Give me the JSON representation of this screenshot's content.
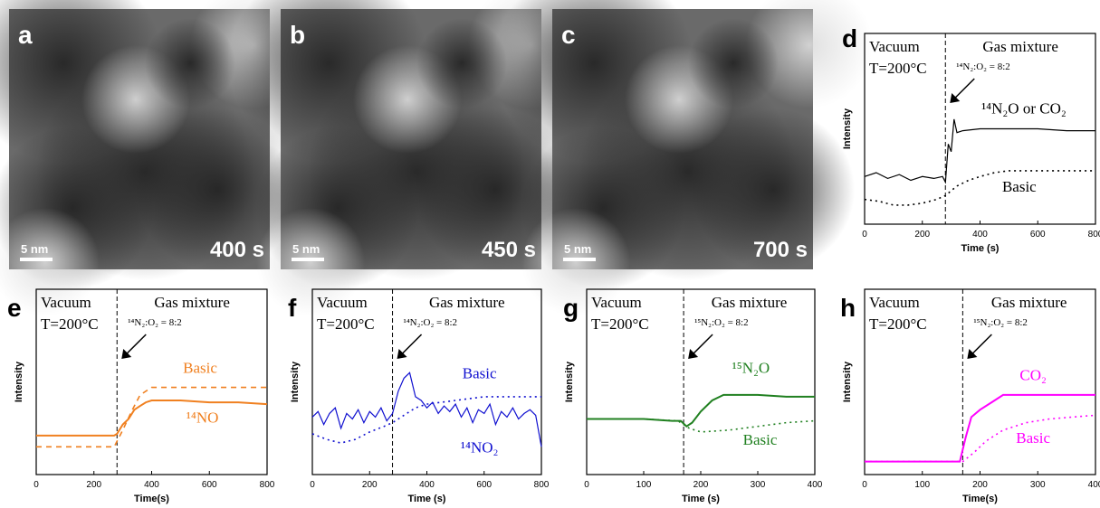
{
  "images": [
    {
      "letter": "a",
      "scale": "5 nm",
      "time": "400 s"
    },
    {
      "letter": "b",
      "scale": "5 nm",
      "time": "450 s"
    },
    {
      "letter": "c",
      "scale": "5 nm",
      "time": "700 s"
    }
  ],
  "chart_data": [
    {
      "type": "line",
      "letter": "d",
      "xlabel": "Time (s)",
      "ylabel": "Intensity",
      "annotations": [
        "Vacuum",
        "T=200°C",
        "Gas mixture",
        "¹⁴N₂:O₂ = 8:2"
      ],
      "switch_x": 280,
      "xlim": [
        0,
        800
      ],
      "xticks": [
        0,
        200,
        400,
        600,
        800
      ],
      "ylim": [
        0,
        1
      ],
      "series": [
        {
          "name": "¹⁴N₂O or CO₂",
          "color": "#000000",
          "style": "solid",
          "x": [
            0,
            40,
            80,
            120,
            160,
            200,
            240,
            270,
            280,
            290,
            300,
            310,
            320,
            340,
            400,
            500,
            600,
            700,
            800
          ],
          "values": [
            0.25,
            0.27,
            0.24,
            0.26,
            0.23,
            0.25,
            0.24,
            0.25,
            0.22,
            0.42,
            0.38,
            0.55,
            0.48,
            0.49,
            0.5,
            0.5,
            0.5,
            0.49,
            0.49
          ]
        },
        {
          "name": "Basic",
          "color": "#000000",
          "style": "dotted",
          "x": [
            0,
            50,
            100,
            150,
            200,
            250,
            280,
            320,
            360,
            400,
            450,
            500,
            600,
            700,
            800
          ],
          "values": [
            0.13,
            0.12,
            0.1,
            0.1,
            0.11,
            0.13,
            0.15,
            0.2,
            0.23,
            0.25,
            0.27,
            0.28,
            0.28,
            0.28,
            0.28
          ]
        }
      ]
    },
    {
      "type": "line",
      "letter": "e",
      "xlabel": "Time(s)",
      "ylabel": "Intensity",
      "annotations": [
        "Vacuum",
        "T=200°C",
        "Gas mixture",
        "¹⁴N₂:O₂ = 8:2"
      ],
      "switch_x": 280,
      "xlim": [
        0,
        800
      ],
      "xticks": [
        0,
        200,
        400,
        600,
        800
      ],
      "ylim": [
        0,
        1
      ],
      "series": [
        {
          "name": "¹⁴NO",
          "color": "#f08020",
          "style": "solid",
          "x": [
            0,
            100,
            200,
            270,
            280,
            300,
            320,
            340,
            360,
            380,
            400,
            500,
            600,
            700,
            800
          ],
          "values": [
            0.21,
            0.21,
            0.21,
            0.21,
            0.22,
            0.27,
            0.3,
            0.35,
            0.37,
            0.39,
            0.4,
            0.4,
            0.39,
            0.39,
            0.38
          ]
        },
        {
          "name": "Basic",
          "color": "#f08020",
          "style": "dashed",
          "x": [
            0,
            100,
            200,
            270,
            300,
            330,
            360,
            400,
            500,
            600,
            700,
            800
          ],
          "values": [
            0.15,
            0.15,
            0.15,
            0.15,
            0.24,
            0.34,
            0.43,
            0.47,
            0.47,
            0.47,
            0.47,
            0.47
          ]
        }
      ]
    },
    {
      "type": "line",
      "letter": "f",
      "xlabel": "Time (s)",
      "ylabel": "Intensity",
      "annotations": [
        "Vacuum",
        "T=200°C",
        "Gas mixture",
        "¹⁴N₂:O₂ = 8:2"
      ],
      "switch_x": 280,
      "xlim": [
        0,
        800
      ],
      "xticks": [
        0,
        200,
        400,
        600,
        800
      ],
      "ylim": [
        0,
        1
      ],
      "series": [
        {
          "name": "¹⁴NO₂",
          "color": "#1010d0",
          "style": "solid",
          "x": [
            0,
            20,
            40,
            60,
            80,
            100,
            120,
            140,
            160,
            180,
            200,
            220,
            240,
            260,
            280,
            300,
            320,
            340,
            360,
            380,
            400,
            420,
            440,
            460,
            480,
            500,
            520,
            540,
            560,
            580,
            600,
            620,
            640,
            660,
            680,
            700,
            720,
            740,
            760,
            780,
            800
          ],
          "values": [
            0.31,
            0.34,
            0.27,
            0.33,
            0.36,
            0.25,
            0.33,
            0.3,
            0.35,
            0.28,
            0.34,
            0.31,
            0.36,
            0.29,
            0.33,
            0.45,
            0.52,
            0.55,
            0.42,
            0.4,
            0.36,
            0.39,
            0.33,
            0.37,
            0.34,
            0.38,
            0.31,
            0.36,
            0.28,
            0.35,
            0.33,
            0.38,
            0.27,
            0.34,
            0.31,
            0.36,
            0.3,
            0.33,
            0.35,
            0.32,
            0.15
          ]
        },
        {
          "name": "Basic",
          "color": "#1010d0",
          "style": "dotted",
          "x": [
            0,
            50,
            100,
            150,
            200,
            250,
            280,
            320,
            360,
            400,
            500,
            600,
            700,
            800
          ],
          "values": [
            0.22,
            0.19,
            0.17,
            0.19,
            0.23,
            0.26,
            0.28,
            0.32,
            0.36,
            0.38,
            0.4,
            0.42,
            0.42,
            0.42
          ]
        }
      ]
    },
    {
      "type": "line",
      "letter": "g",
      "xlabel": "Time (s)",
      "ylabel": "Intensity",
      "annotations": [
        "Vacuum",
        "T=200°C",
        "Gas mixture",
        "¹⁵N₂:O₂ = 8:2"
      ],
      "switch_x": 170,
      "xlim": [
        0,
        400
      ],
      "xticks": [
        0,
        100,
        200,
        300,
        400
      ],
      "ylim": [
        0,
        1
      ],
      "series": [
        {
          "name": "¹⁵N₂O",
          "color": "#208020",
          "style": "solid",
          "x": [
            0,
            50,
            100,
            150,
            165,
            175,
            185,
            200,
            220,
            240,
            260,
            300,
            350,
            400
          ],
          "values": [
            0.3,
            0.3,
            0.3,
            0.29,
            0.29,
            0.26,
            0.28,
            0.34,
            0.4,
            0.43,
            0.43,
            0.43,
            0.42,
            0.42
          ]
        },
        {
          "name": "Basic",
          "color": "#208020",
          "style": "dotted",
          "x": [
            0,
            100,
            160,
            180,
            200,
            250,
            300,
            350,
            400
          ],
          "values": [
            0.3,
            0.3,
            0.29,
            0.25,
            0.23,
            0.24,
            0.26,
            0.28,
            0.29
          ]
        }
      ]
    },
    {
      "type": "line",
      "letter": "h",
      "xlabel": "Time(s)",
      "ylabel": "Intensity",
      "annotations": [
        "Vacuum",
        "T=200°C",
        "Gas mixture",
        "¹⁵N₂:O₂ = 8:2"
      ],
      "switch_x": 170,
      "xlim": [
        0,
        400
      ],
      "xticks": [
        0,
        100,
        200,
        300,
        400
      ],
      "ylim": [
        0,
        1
      ],
      "series": [
        {
          "name": "CO₂",
          "color": "#ff00ff",
          "style": "solid",
          "x": [
            0,
            100,
            165,
            175,
            185,
            200,
            220,
            240,
            300,
            350,
            400
          ],
          "values": [
            0.07,
            0.07,
            0.07,
            0.2,
            0.31,
            0.35,
            0.39,
            0.43,
            0.43,
            0.43,
            0.43
          ]
        },
        {
          "name": "Basic",
          "color": "#ff00ff",
          "style": "dotted",
          "x": [
            0,
            100,
            170,
            190,
            210,
            240,
            280,
            320,
            360,
            400
          ],
          "values": [
            0.07,
            0.07,
            0.07,
            0.12,
            0.18,
            0.24,
            0.28,
            0.3,
            0.31,
            0.32
          ]
        }
      ]
    }
  ]
}
